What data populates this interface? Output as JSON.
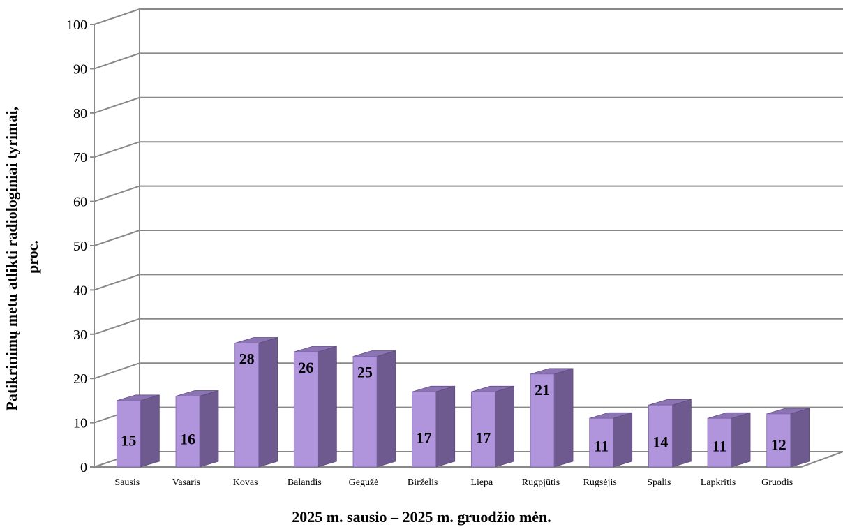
{
  "chart_data": {
    "type": "bar",
    "categories": [
      "Sausis",
      "Vasaris",
      "Kovas",
      "Balandis",
      "Gegužė",
      "Birželis",
      "Liepa",
      "Rugpjūtis",
      "Rugsėjis",
      "Spalis",
      "Lapkritis",
      "Gruodis"
    ],
    "values": [
      15,
      16,
      28,
      26,
      25,
      17,
      17,
      21,
      11,
      14,
      11,
      12
    ],
    "title": "",
    "xlabel": "2025 m. sausio – 2025 m. gruodžio mėn.",
    "ylabel": "Patikrinimų metu atlikti radiologiniai tyrimai, proc.",
    "ylabel_lines": [
      "Patikrinimų metu atlikti radiologiniai tyrimai,",
      "proc."
    ],
    "ylim": [
      0,
      100
    ],
    "yticks": [
      0,
      10,
      20,
      30,
      40,
      50,
      60,
      70,
      80,
      90,
      100
    ],
    "grid": true,
    "legend": "none",
    "style": "3d-column",
    "colors": {
      "bar_front": "#b094dc",
      "bar_side": "#6e5a8e",
      "bar_top": "#8c74b4",
      "grid": "#888888"
    }
  }
}
